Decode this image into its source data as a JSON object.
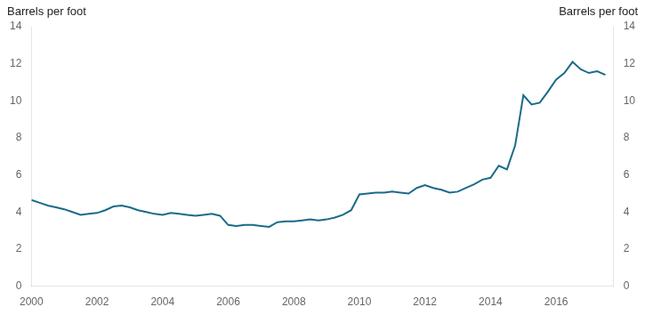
{
  "chart_data": {
    "type": "line",
    "ylabel": "Barrels per foot",
    "y2label": "Barrels per foot",
    "x": [
      2000.0,
      2000.25,
      2000.5,
      2000.75,
      2001.0,
      2001.25,
      2001.5,
      2001.75,
      2002.0,
      2002.25,
      2002.5,
      2002.75,
      2003.0,
      2003.25,
      2003.5,
      2003.75,
      2004.0,
      2004.25,
      2004.5,
      2004.75,
      2005.0,
      2005.25,
      2005.5,
      2005.75,
      2006.0,
      2006.25,
      2006.5,
      2006.75,
      2007.0,
      2007.25,
      2007.5,
      2007.75,
      2008.0,
      2008.25,
      2008.5,
      2008.75,
      2009.0,
      2009.25,
      2009.5,
      2009.75,
      2010.0,
      2010.25,
      2010.5,
      2010.75,
      2011.0,
      2011.25,
      2011.5,
      2011.75,
      2012.0,
      2012.25,
      2012.5,
      2012.75,
      2013.0,
      2013.25,
      2013.5,
      2013.75,
      2014.0,
      2014.25,
      2014.5,
      2014.75,
      2015.0,
      2015.25,
      2015.5,
      2015.75,
      2016.0,
      2016.25,
      2016.5,
      2016.75,
      2017.0,
      2017.25,
      2017.5
    ],
    "values": [
      4.65,
      4.5,
      4.35,
      4.25,
      4.15,
      4.0,
      3.85,
      3.9,
      3.95,
      4.1,
      4.3,
      4.35,
      4.25,
      4.1,
      4.0,
      3.9,
      3.85,
      3.95,
      3.9,
      3.85,
      3.8,
      3.85,
      3.9,
      3.8,
      3.3,
      3.25,
      3.3,
      3.3,
      3.25,
      3.2,
      3.45,
      3.5,
      3.5,
      3.55,
      3.6,
      3.55,
      3.6,
      3.7,
      3.85,
      4.1,
      4.95,
      5.0,
      5.05,
      5.05,
      5.1,
      5.05,
      5.0,
      5.3,
      5.45,
      5.3,
      5.2,
      5.05,
      5.1,
      5.3,
      5.5,
      5.75,
      5.85,
      6.5,
      6.3,
      7.6,
      10.3,
      9.8,
      9.9,
      10.5,
      11.15,
      11.5,
      12.1,
      11.7,
      11.5,
      11.6,
      11.4
    ],
    "color": "#1a6b8a",
    "xlim": [
      2000,
      2017.75
    ],
    "xticks": [
      2000,
      2002,
      2004,
      2006,
      2008,
      2010,
      2012,
      2014,
      2016
    ],
    "ylim": [
      0,
      14
    ],
    "yticks": [
      0,
      2,
      4,
      6,
      8,
      10,
      12,
      14
    ],
    "y2lim": [
      0,
      14
    ],
    "y2ticks": [
      0,
      2,
      4,
      6,
      8,
      10,
      12,
      14
    ],
    "grid": false
  }
}
